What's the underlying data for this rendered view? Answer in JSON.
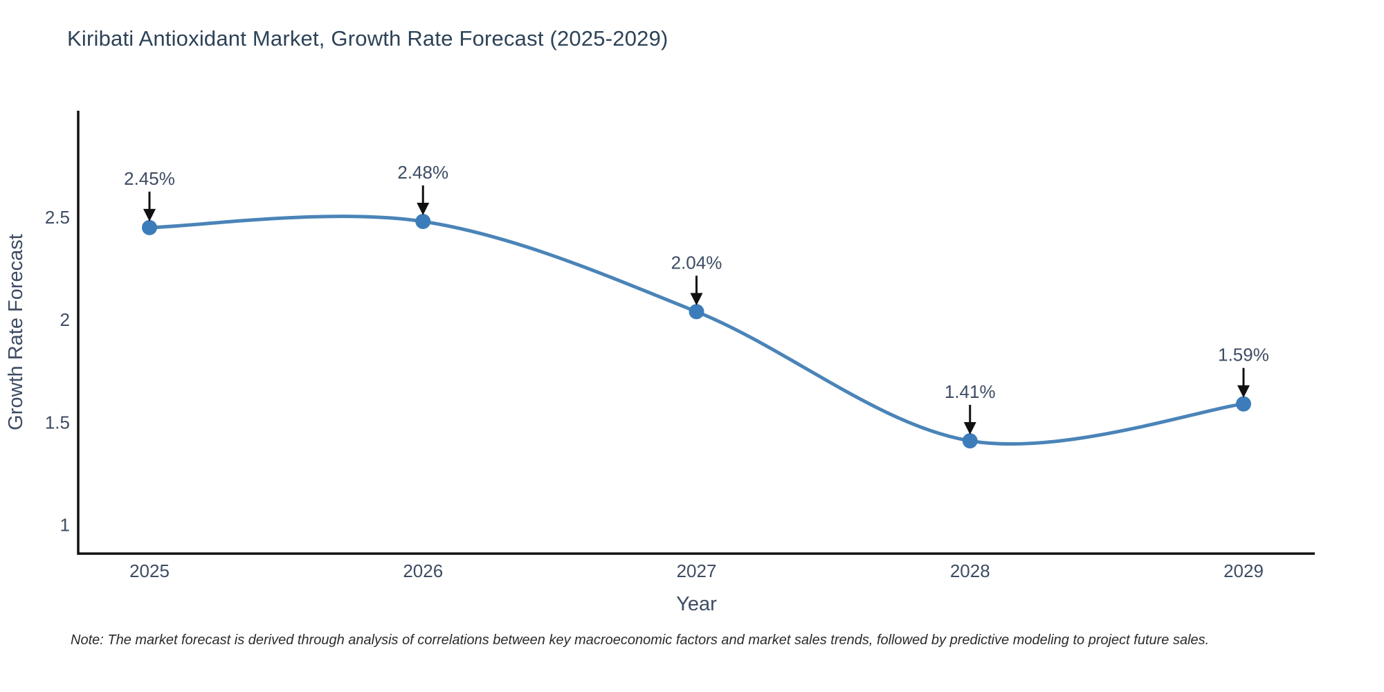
{
  "chart_data": {
    "type": "line",
    "title": "Kiribati Antioxidant Market, Growth Rate Forecast (2025-2029)",
    "xlabel": "Year",
    "ylabel": "Growth Rate Forecast",
    "categories": [
      "2025",
      "2026",
      "2027",
      "2028",
      "2029"
    ],
    "values": [
      2.45,
      2.48,
      2.04,
      1.41,
      1.59
    ],
    "point_labels": [
      "2.45%",
      "2.48%",
      "2.04%",
      "1.41%",
      "1.59%"
    ],
    "y_ticks": [
      "1",
      "1.5",
      "2",
      "2.5"
    ],
    "y_tick_values": [
      1,
      1.5,
      2,
      2.5
    ],
    "ylim": [
      0.86,
      3.02
    ],
    "grid": false,
    "legend": false,
    "line_shape": "spline",
    "colors": {
      "line": "#4a84b8",
      "marker": "#3d7cba",
      "axis": "#111111",
      "title_text": "#2d4257",
      "tick_text": "#3d4c63",
      "annotation_text": "#3d4c63",
      "arrow": "#111111",
      "background": "#ffffff"
    }
  },
  "note": "Note: The market forecast is derived through analysis of correlations between key macroeconomic factors and market sales trends, followed by predictive modeling to project future sales."
}
